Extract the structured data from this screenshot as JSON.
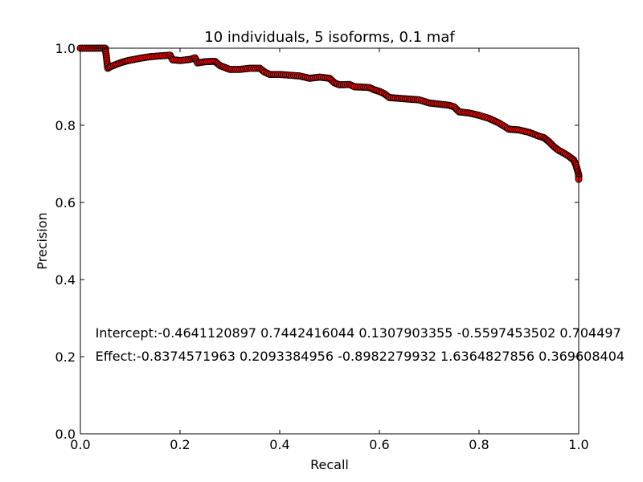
{
  "chart_data": {
    "type": "scatter",
    "title": "10 individuals, 5 isoforms, 0.1 maf",
    "xlabel": "Recall",
    "ylabel": "Precision",
    "xlim": [
      0.0,
      1.0
    ],
    "ylim": [
      0.0,
      1.0
    ],
    "xticks": [
      "0.0",
      "0.2",
      "0.4",
      "0.6",
      "0.8",
      "1.0"
    ],
    "yticks": [
      "0.0",
      "0.2",
      "0.4",
      "0.6",
      "0.8",
      "1.0"
    ],
    "grid": false,
    "marker_color": "#ff0000",
    "marker_edge_color": "#000000",
    "annotations": [
      {
        "text": "Intercept:-0.4641120897 0.7442416044 0.1307903355 -0.5597453502 0.704497",
        "x": 0.03,
        "y": 0.26
      },
      {
        "text": "Effect:-0.8374571963 0.2093384956 -0.8982279932 1.6364827856 0.369608404",
        "x": 0.03,
        "y": 0.2
      }
    ],
    "curve_points": [
      [
        0.0,
        1.0
      ],
      [
        0.05,
        1.0
      ],
      [
        0.055,
        0.948
      ],
      [
        0.06,
        0.952
      ],
      [
        0.07,
        0.957
      ],
      [
        0.08,
        0.962
      ],
      [
        0.09,
        0.966
      ],
      [
        0.1,
        0.969
      ],
      [
        0.12,
        0.974
      ],
      [
        0.14,
        0.978
      ],
      [
        0.16,
        0.98
      ],
      [
        0.18,
        0.982
      ],
      [
        0.185,
        0.97
      ],
      [
        0.2,
        0.968
      ],
      [
        0.22,
        0.971
      ],
      [
        0.23,
        0.975
      ],
      [
        0.235,
        0.962
      ],
      [
        0.25,
        0.965
      ],
      [
        0.27,
        0.966
      ],
      [
        0.28,
        0.955
      ],
      [
        0.3,
        0.945
      ],
      [
        0.32,
        0.945
      ],
      [
        0.34,
        0.948
      ],
      [
        0.36,
        0.948
      ],
      [
        0.37,
        0.938
      ],
      [
        0.38,
        0.932
      ],
      [
        0.4,
        0.932
      ],
      [
        0.42,
        0.93
      ],
      [
        0.44,
        0.928
      ],
      [
        0.46,
        0.922
      ],
      [
        0.48,
        0.925
      ],
      [
        0.5,
        0.922
      ],
      [
        0.51,
        0.91
      ],
      [
        0.52,
        0.905
      ],
      [
        0.54,
        0.906
      ],
      [
        0.55,
        0.9
      ],
      [
        0.58,
        0.898
      ],
      [
        0.59,
        0.892
      ],
      [
        0.6,
        0.888
      ],
      [
        0.61,
        0.882
      ],
      [
        0.62,
        0.872
      ],
      [
        0.64,
        0.87
      ],
      [
        0.66,
        0.868
      ],
      [
        0.68,
        0.866
      ],
      [
        0.7,
        0.858
      ],
      [
        0.72,
        0.855
      ],
      [
        0.74,
        0.852
      ],
      [
        0.75,
        0.848
      ],
      [
        0.76,
        0.835
      ],
      [
        0.78,
        0.832
      ],
      [
        0.8,
        0.826
      ],
      [
        0.82,
        0.818
      ],
      [
        0.84,
        0.806
      ],
      [
        0.85,
        0.798
      ],
      [
        0.86,
        0.79
      ],
      [
        0.88,
        0.788
      ],
      [
        0.9,
        0.782
      ],
      [
        0.92,
        0.772
      ],
      [
        0.93,
        0.768
      ],
      [
        0.94,
        0.758
      ],
      [
        0.95,
        0.745
      ],
      [
        0.96,
        0.735
      ],
      [
        0.97,
        0.728
      ],
      [
        0.98,
        0.72
      ],
      [
        0.99,
        0.71
      ],
      [
        0.995,
        0.695
      ],
      [
        1.0,
        0.672
      ],
      [
        1.0,
        0.66
      ]
    ]
  }
}
